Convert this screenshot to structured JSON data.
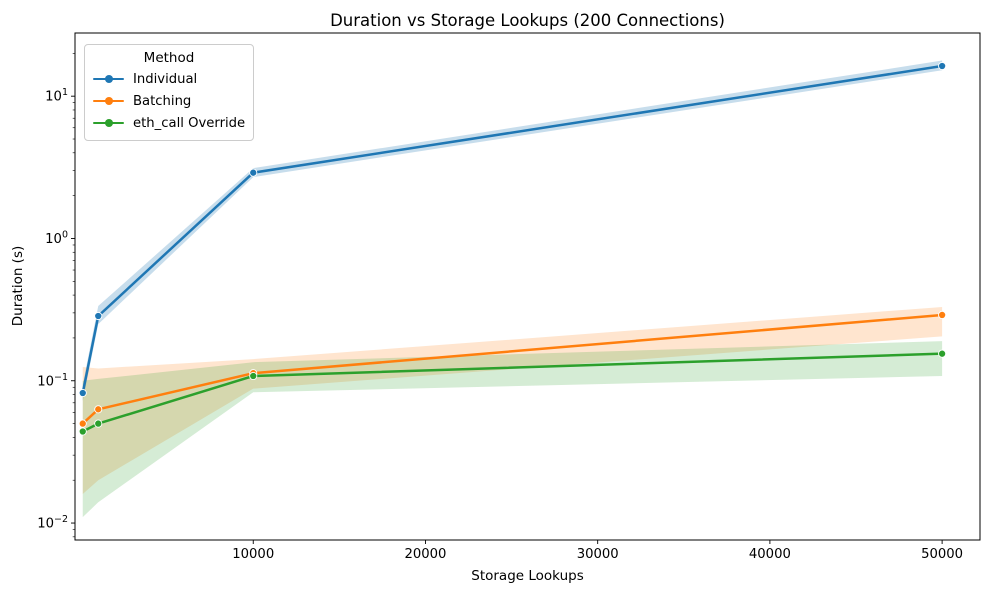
{
  "chart_data": {
    "type": "line",
    "title": "Duration vs Storage Lookups (200 Connections)",
    "xlabel": "Storage Lookups",
    "ylabel": "Duration (s)",
    "yscale": "log",
    "grid": false,
    "xlim": [
      -350,
      52200
    ],
    "ylim": [
      0.0076,
      27.8
    ],
    "x": [
      100,
      1000,
      10000,
      50000
    ],
    "series": [
      {
        "name": "Individual",
        "color": "#1f77b4",
        "values": [
          0.082,
          0.285,
          2.9,
          16.3
        ],
        "ci_lower": [
          0.072,
          0.25,
          2.7,
          15.2
        ],
        "ci_upper": [
          0.094,
          0.335,
          3.12,
          17.8
        ]
      },
      {
        "name": "Batching",
        "color": "#ff7f0e",
        "values": [
          0.05,
          0.063,
          0.113,
          0.29
        ],
        "ci_lower": [
          0.016,
          0.02,
          0.088,
          0.205
        ],
        "ci_upper": [
          0.125,
          0.122,
          0.142,
          0.33
        ]
      },
      {
        "name": "eth_call Override",
        "color": "#2ca02c",
        "values": [
          0.044,
          0.05,
          0.108,
          0.155
        ],
        "ci_lower": [
          0.011,
          0.014,
          0.083,
          0.108
        ],
        "ci_upper": [
          0.1,
          0.103,
          0.135,
          0.19
        ]
      }
    ],
    "x_ticks": [
      {
        "v": 10000,
        "label": "10000"
      },
      {
        "v": 20000,
        "label": "20000"
      },
      {
        "v": 30000,
        "label": "30000"
      },
      {
        "v": 40000,
        "label": "40000"
      },
      {
        "v": 50000,
        "label": "50000"
      }
    ],
    "y_major_ticks": [
      {
        "v": 0.01,
        "base": "10",
        "exp": "−2"
      },
      {
        "v": 0.1,
        "base": "10",
        "exp": "−1"
      },
      {
        "v": 1,
        "base": "10",
        "exp": "0"
      },
      {
        "v": 10,
        "base": "10",
        "exp": "1"
      }
    ],
    "legend": {
      "title": "Method",
      "position": "upper left"
    }
  }
}
